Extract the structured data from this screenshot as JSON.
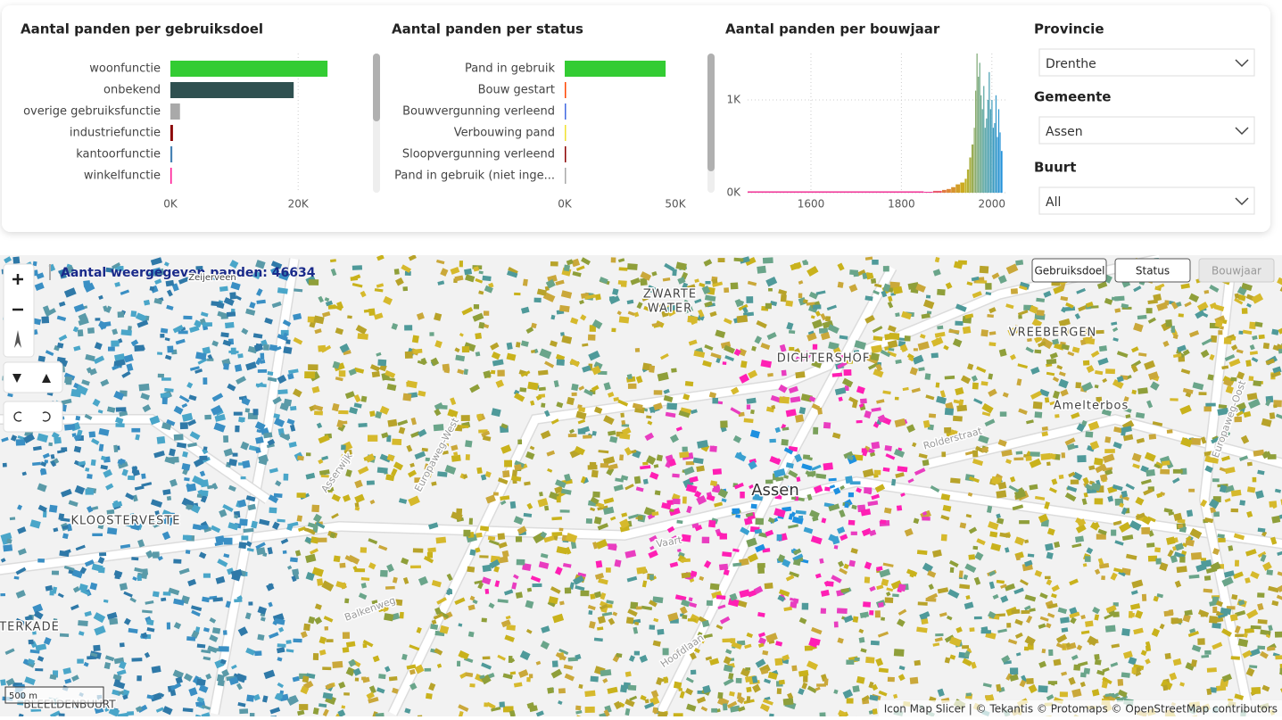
{
  "chart_data": [
    {
      "type": "bar",
      "orientation": "horizontal",
      "title": "Aantal panden per gebruiksdoel",
      "categories": [
        "woonfunctie",
        "onbekend",
        "overige gebruiksfunctie",
        "industriefunctie",
        "kantoorfunctie",
        "winkelfunctie"
      ],
      "values": [
        24600,
        19300,
        1500,
        400,
        300,
        200
      ],
      "colors": [
        "#33cc33",
        "#2f5050",
        "#a9a9a9",
        "#8b0000",
        "#4682b4",
        "#ff1493"
      ],
      "xlim": [
        0,
        25000
      ],
      "xticks": [
        {
          "value": 0,
          "label": "0K"
        },
        {
          "value": 20000,
          "label": "20K"
        }
      ],
      "grid": true
    },
    {
      "type": "bar",
      "orientation": "horizontal",
      "title": "Aantal panden per status",
      "categories": [
        "Pand in gebruik",
        "Bouw gestart",
        "Bouwvergunning verleend",
        "Verbouwing pand",
        "Sloopvergunning verleend",
        "Pand in gebruik (niet inge..."
      ],
      "values": [
        45600,
        300,
        400,
        200,
        300,
        100
      ],
      "colors": [
        "#33cc33",
        "#ff4500",
        "#4169e1",
        "#f0e130",
        "#8b0000",
        "#a9a9a9"
      ],
      "xlim": [
        0,
        50000
      ],
      "xticks": [
        {
          "value": 0,
          "label": "0K"
        },
        {
          "value": 50000,
          "label": "50K"
        }
      ],
      "grid": false
    },
    {
      "type": "histogram",
      "title": "Aantal panden per bouwjaar",
      "bins": [
        1460,
        1850,
        1870,
        1890,
        1900,
        1910,
        1920,
        1930,
        1940,
        1945,
        1950,
        1955,
        1960,
        1963,
        1966,
        1969,
        1972,
        1975,
        1978,
        1981,
        1984,
        1987,
        1990,
        1993,
        1996,
        1999,
        2002,
        2005,
        2008,
        2011,
        2014,
        2017,
        2020,
        2024
      ],
      "values": [
        15,
        10,
        20,
        30,
        40,
        60,
        90,
        110,
        150,
        250,
        380,
        520,
        700,
        1100,
        1500,
        1250,
        1400,
        1050,
        900,
        1150,
        700,
        800,
        1000,
        1300,
        900,
        1000,
        700,
        750,
        1050,
        600,
        900,
        650,
        450
      ],
      "colors": [
        "#f0399a",
        "#e0803a",
        "#c9b21c",
        "#5aa5a0",
        "#1e90e0"
      ],
      "xlim": [
        1460,
        2030
      ],
      "xticks": [
        1600,
        1800,
        2000
      ],
      "ylim": [
        0,
        1500
      ],
      "yticks": [
        {
          "value": 0,
          "label": "0K"
        },
        {
          "value": 1000,
          "label": "1K"
        }
      ],
      "grid": true
    }
  ],
  "slicers": [
    {
      "label": "Provincie",
      "value": "Drenthe"
    },
    {
      "label": "Gemeente",
      "value": "Assen"
    },
    {
      "label": "Buurt",
      "value": "All"
    }
  ],
  "map": {
    "count_label": "Aantal weergegeven panden: 46634",
    "place_labels": [
      "Zeijerveen",
      "ZWARTE",
      "WATER",
      "DICHTERSHOF",
      "VREEBERGEN",
      "Amelterbos",
      "KLOOSTERVESTE",
      "Assen",
      "TERKADE",
      "BLEELDENBUURT"
    ],
    "road_labels": [
      "Balkenweg",
      "Hoofdlaan",
      "Europaweg-West",
      "Europaweg-Oost",
      "Vaart",
      "Rolderstraat",
      "Asserwijk"
    ],
    "layer_buttons": [
      "Gebruiksdoel",
      "Status",
      "Bouwjaar"
    ],
    "scale": "500 m",
    "attribution": "Icon Map Slicer | © Tekantis © Protomaps © OpenStreetMap contributors"
  }
}
